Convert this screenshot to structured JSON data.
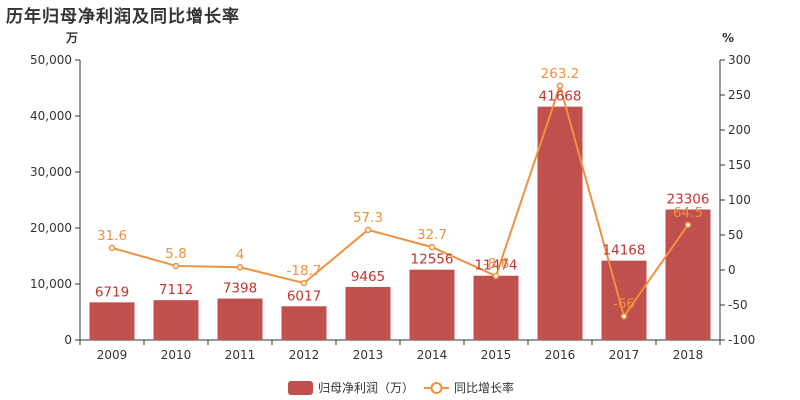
{
  "title": "历年归母净利润及同比增长率",
  "colors": {
    "bar": "#c0504d",
    "line": "#f0913f",
    "axis": "#333333"
  },
  "chart_data": {
    "type": "bar",
    "categories": [
      "2009",
      "2010",
      "2011",
      "2012",
      "2013",
      "2014",
      "2015",
      "2016",
      "2017",
      "2018"
    ],
    "series": [
      {
        "name": "归母净利润（万）",
        "type": "bar",
        "axis": "left",
        "values": [
          6719,
          7112,
          7398,
          6017,
          9465,
          12556,
          11474,
          41668,
          14168,
          23306
        ]
      },
      {
        "name": "同比增长率",
        "type": "line",
        "axis": "right",
        "values": [
          31.6,
          5.8,
          4,
          -18.7,
          57.3,
          32.7,
          -8.6,
          263.2,
          -66,
          64.5
        ]
      }
    ],
    "bar_labels": [
      "6719",
      "7112",
      "7398",
      "6017",
      "9465",
      "12556",
      "11474",
      "41668",
      "14168",
      "23306"
    ],
    "line_labels": [
      "31.6",
      "5.8",
      "4",
      "-18.7",
      "57.3",
      "32.7",
      "-8.6",
      "263.2",
      "-66",
      "64.5"
    ],
    "y_left": {
      "unit": "万",
      "min": 0,
      "max": 50000,
      "ticks": [
        "0",
        "10,000",
        "20,000",
        "30,000",
        "40,000",
        "50,000"
      ]
    },
    "y_right": {
      "unit": "%",
      "min": -100,
      "max": 300,
      "ticks": [
        "-100",
        "-50",
        "0",
        "50",
        "100",
        "150",
        "200",
        "250",
        "300"
      ]
    },
    "legend": "bottom-center"
  }
}
